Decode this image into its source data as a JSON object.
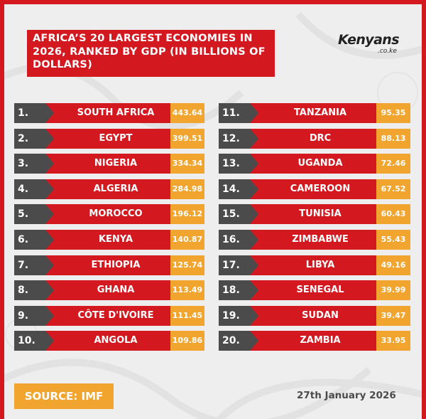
{
  "title": "AFRICA’S 20 LARGEST ECONOMIES IN 2026, RANKED BY GDP (IN BILLIONS OF DOLLARS)",
  "logo": {
    "name": "Kenyans",
    "suffix": ".co.ke"
  },
  "source": "SOURCE: IMF",
  "date": "27th January 2026",
  "colors": {
    "red": "#d4181f",
    "gray": "#4b4b4b",
    "orange": "#f2a52e",
    "background": "#eeeeee"
  },
  "chart_data": {
    "type": "table",
    "columns": [
      "Rank",
      "Country",
      "GDP (billions of dollars)"
    ],
    "rows": [
      {
        "rank": "1.",
        "country": "SOUTH AFRICA",
        "value": "443.64"
      },
      {
        "rank": "2.",
        "country": "EGYPT",
        "value": "399.51"
      },
      {
        "rank": "3.",
        "country": "NIGERIA",
        "value": "334.34"
      },
      {
        "rank": "4.",
        "country": "ALGERIA",
        "value": "284.98"
      },
      {
        "rank": "5.",
        "country": "MOROCCO",
        "value": "196.12"
      },
      {
        "rank": "6.",
        "country": "KENYA",
        "value": "140.87"
      },
      {
        "rank": "7.",
        "country": "ETHIOPIA",
        "value": "125.74"
      },
      {
        "rank": "8.",
        "country": "GHANA",
        "value": "113.49"
      },
      {
        "rank": "9.",
        "country": "CÔTE D'IVOIRE",
        "value": "111.45"
      },
      {
        "rank": "10.",
        "country": "ANGOLA",
        "value": "109.86"
      },
      {
        "rank": "11.",
        "country": "TANZANIA",
        "value": "95.35"
      },
      {
        "rank": "12.",
        "country": "DRC",
        "value": "88.13"
      },
      {
        "rank": "13.",
        "country": "UGANDA",
        "value": "72.46"
      },
      {
        "rank": "14.",
        "country": "CAMEROON",
        "value": "67.52"
      },
      {
        "rank": "15.",
        "country": "TUNISIA",
        "value": "60.43"
      },
      {
        "rank": "16.",
        "country": "ZIMBABWE",
        "value": "55.43"
      },
      {
        "rank": "17.",
        "country": "LIBYA",
        "value": "49.16"
      },
      {
        "rank": "18.",
        "country": "SENEGAL",
        "value": "39.99"
      },
      {
        "rank": "19.",
        "country": "SUDAN",
        "value": "39.47"
      },
      {
        "rank": "20.",
        "country": "ZAMBIA",
        "value": "33.95"
      }
    ]
  }
}
